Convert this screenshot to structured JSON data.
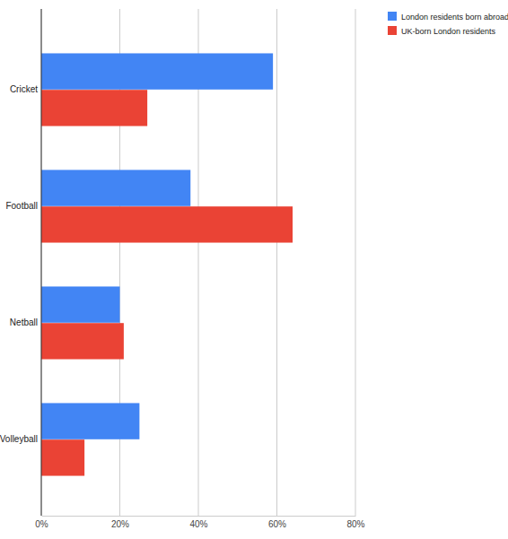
{
  "chart_data": {
    "type": "bar",
    "orientation": "horizontal",
    "grid": true,
    "legend": "top-right",
    "categories": [
      "Cricket",
      "Football",
      "Netball",
      "Volleyball"
    ],
    "series": [
      {
        "name": "London residents born abroad",
        "color": "#4285f4",
        "values": [
          59,
          38,
          20,
          25
        ]
      },
      {
        "name": "UK-born London residents",
        "color": "#ea4335",
        "values": [
          27,
          64,
          21,
          11
        ]
      }
    ],
    "xlim": [
      0,
      80
    ],
    "xticks": [
      {
        "value": 0,
        "label": "0%"
      },
      {
        "value": 20,
        "label": "20%"
      },
      {
        "value": 40,
        "label": "40%"
      },
      {
        "value": 60,
        "label": "60%"
      },
      {
        "value": 80,
        "label": "80%"
      }
    ]
  }
}
